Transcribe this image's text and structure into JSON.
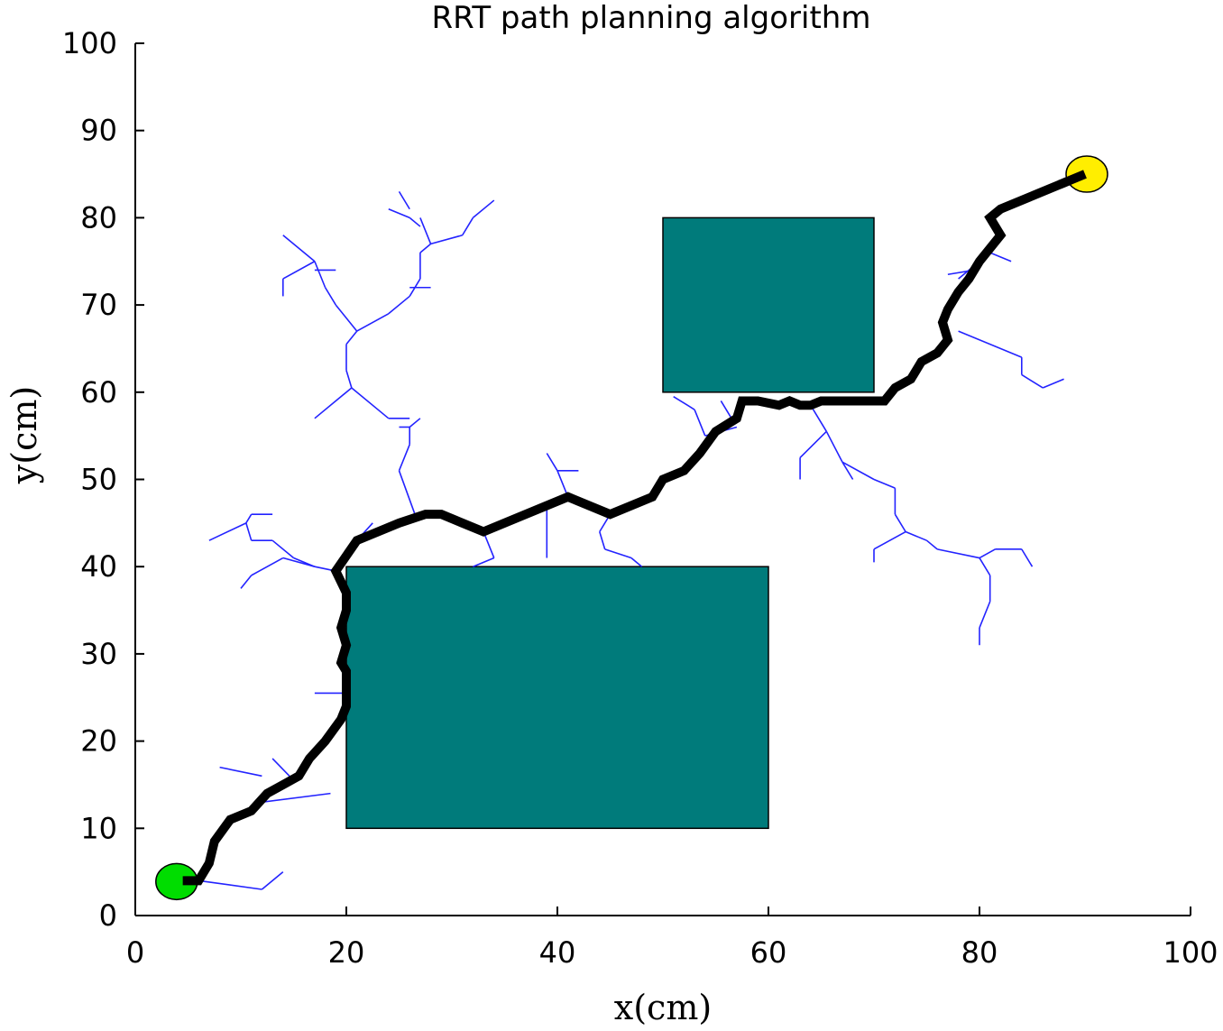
{
  "chart_data": {
    "type": "scatter",
    "title": "RRT path planning algorithm",
    "xlabel": "x(cm)",
    "ylabel": "y(cm)",
    "xlim": [
      0,
      100
    ],
    "ylim": [
      0,
      100
    ],
    "xticks": [
      "0",
      "20",
      "40",
      "60",
      "80",
      "100"
    ],
    "yticks": [
      "0",
      "10",
      "20",
      "30",
      "40",
      "50",
      "60",
      "70",
      "80",
      "90",
      "100"
    ],
    "grid": false,
    "legend": "none",
    "colors": {
      "obstacle": "#007b7b",
      "tree": "#2323ff",
      "path": "#000000",
      "start": "#00dd00",
      "goal": "#ffee00"
    },
    "start": [
      4,
      4
    ],
    "goal": [
      90,
      85
    ],
    "obstacles": [
      {
        "x": [
          20,
          60
        ],
        "y": [
          10,
          40
        ]
      },
      {
        "x": [
          50,
          70
        ],
        "y": [
          60,
          80
        ]
      }
    ],
    "path": [
      [
        4.5,
        4
      ],
      [
        6,
        4
      ],
      [
        7,
        6
      ],
      [
        7.5,
        8.5
      ],
      [
        9,
        11
      ],
      [
        11,
        12
      ],
      [
        12.5,
        14
      ],
      [
        14,
        15
      ],
      [
        15.5,
        16
      ],
      [
        16.5,
        18
      ],
      [
        18,
        20
      ],
      [
        19.5,
        22.5
      ],
      [
        20,
        24
      ],
      [
        20,
        28
      ],
      [
        19.5,
        29
      ],
      [
        20,
        31
      ],
      [
        19.5,
        33
      ],
      [
        20,
        35
      ],
      [
        20,
        37
      ],
      [
        19,
        39.5
      ],
      [
        21,
        43
      ],
      [
        25,
        45
      ],
      [
        27.5,
        46
      ],
      [
        29,
        46
      ],
      [
        33,
        44
      ],
      [
        37,
        46
      ],
      [
        41,
        48
      ],
      [
        45,
        46
      ],
      [
        49,
        48
      ],
      [
        50,
        50
      ],
      [
        52,
        51
      ],
      [
        53.5,
        53
      ],
      [
        55,
        55.5
      ],
      [
        57,
        57
      ],
      [
        57.5,
        59
      ],
      [
        59,
        59
      ],
      [
        61,
        58.5
      ],
      [
        62,
        59
      ],
      [
        63,
        58.5
      ],
      [
        64,
        58.5
      ],
      [
        65,
        59
      ],
      [
        71,
        59
      ],
      [
        72,
        60.5
      ],
      [
        73.5,
        61.5
      ],
      [
        74.5,
        63.5
      ],
      [
        76,
        64.5
      ],
      [
        77,
        66
      ],
      [
        76.5,
        68
      ],
      [
        77,
        69.5
      ],
      [
        78,
        71.5
      ],
      [
        79,
        73
      ],
      [
        80,
        75
      ],
      [
        81,
        76.5
      ],
      [
        82,
        78
      ],
      [
        81,
        80
      ],
      [
        82,
        81
      ],
      [
        90,
        85
      ]
    ],
    "tree_edges": [
      [
        [
          6,
          4
        ],
        [
          12,
          3
        ]
      ],
      [
        [
          12,
          3
        ],
        [
          14,
          5
        ]
      ],
      [
        [
          12,
          13
        ],
        [
          18.5,
          14
        ]
      ],
      [
        [
          12,
          16
        ],
        [
          8,
          17
        ]
      ],
      [
        [
          13,
          18
        ],
        [
          15,
          15.5
        ]
      ],
      [
        [
          17,
          25.5
        ],
        [
          20,
          25.5
        ]
      ],
      [
        [
          19,
          39.5
        ],
        [
          17,
          40
        ]
      ],
      [
        [
          17,
          40
        ],
        [
          14,
          41
        ]
      ],
      [
        [
          14,
          41
        ],
        [
          11,
          39
        ]
      ],
      [
        [
          11,
          39
        ],
        [
          10,
          37.5
        ]
      ],
      [
        [
          17,
          40
        ],
        [
          15,
          41
        ]
      ],
      [
        [
          15,
          41
        ],
        [
          13,
          43
        ]
      ],
      [
        [
          13,
          43
        ],
        [
          11,
          43
        ]
      ],
      [
        [
          11,
          43
        ],
        [
          10.5,
          45
        ]
      ],
      [
        [
          10.5,
          45
        ],
        [
          7,
          43
        ]
      ],
      [
        [
          10.5,
          45
        ],
        [
          11,
          46
        ]
      ],
      [
        [
          11,
          46
        ],
        [
          13,
          46
        ]
      ],
      [
        [
          21,
          43
        ],
        [
          22.5,
          45
        ]
      ],
      [
        [
          33,
          44
        ],
        [
          34,
          41
        ]
      ],
      [
        [
          34,
          41
        ],
        [
          32,
          40
        ]
      ],
      [
        [
          39,
          41
        ],
        [
          39,
          47
        ]
      ],
      [
        [
          41,
          48
        ],
        [
          40,
          51
        ]
      ],
      [
        [
          40,
          51
        ],
        [
          39,
          53
        ]
      ],
      [
        [
          40,
          51
        ],
        [
          42,
          51
        ]
      ],
      [
        [
          45,
          46
        ],
        [
          44,
          44
        ]
      ],
      [
        [
          44,
          44
        ],
        [
          44.5,
          42
        ]
      ],
      [
        [
          44.5,
          42
        ],
        [
          47,
          41
        ]
      ],
      [
        [
          47,
          41
        ],
        [
          48,
          40
        ]
      ],
      [
        [
          26.5,
          46
        ],
        [
          25,
          51
        ]
      ],
      [
        [
          25,
          51
        ],
        [
          26,
          54
        ]
      ],
      [
        [
          26,
          54
        ],
        [
          26,
          56
        ]
      ],
      [
        [
          26,
          56
        ],
        [
          27,
          57
        ]
      ],
      [
        [
          26,
          56
        ],
        [
          25,
          56
        ]
      ],
      [
        [
          26,
          57
        ],
        [
          24,
          57
        ]
      ],
      [
        [
          24,
          57
        ],
        [
          20.5,
          60.5
        ]
      ],
      [
        [
          20.5,
          60.5
        ],
        [
          17,
          57
        ]
      ],
      [
        [
          20.5,
          60.5
        ],
        [
          20,
          62.5
        ]
      ],
      [
        [
          20,
          62.5
        ],
        [
          20,
          65.5
        ]
      ],
      [
        [
          20,
          65.5
        ],
        [
          21,
          67
        ]
      ],
      [
        [
          21,
          67
        ],
        [
          19,
          70
        ]
      ],
      [
        [
          19,
          70
        ],
        [
          18,
          72
        ]
      ],
      [
        [
          18,
          72
        ],
        [
          17,
          75
        ]
      ],
      [
        [
          17,
          75
        ],
        [
          14,
          78
        ]
      ],
      [
        [
          17,
          75
        ],
        [
          14,
          73
        ]
      ],
      [
        [
          14,
          73
        ],
        [
          14,
          71
        ]
      ],
      [
        [
          17,
          74
        ],
        [
          19,
          74
        ]
      ],
      [
        [
          21,
          67
        ],
        [
          24,
          69
        ]
      ],
      [
        [
          24,
          69
        ],
        [
          26,
          71
        ]
      ],
      [
        [
          26,
          71
        ],
        [
          27,
          73
        ]
      ],
      [
        [
          26,
          72
        ],
        [
          28,
          72
        ]
      ],
      [
        [
          27,
          73
        ],
        [
          27,
          76
        ]
      ],
      [
        [
          27,
          76
        ],
        [
          28,
          77
        ]
      ],
      [
        [
          28,
          77
        ],
        [
          27,
          80
        ]
      ],
      [
        [
          28,
          77
        ],
        [
          31,
          78
        ]
      ],
      [
        [
          31,
          78
        ],
        [
          32,
          80
        ]
      ],
      [
        [
          32,
          80
        ],
        [
          34,
          82
        ]
      ],
      [
        [
          27,
          79
        ],
        [
          26,
          80
        ]
      ],
      [
        [
          26,
          80
        ],
        [
          24,
          81
        ]
      ],
      [
        [
          26,
          81
        ],
        [
          25,
          83
        ]
      ],
      [
        [
          57,
          56
        ],
        [
          54,
          55
        ]
      ],
      [
        [
          54,
          55
        ],
        [
          53,
          58
        ]
      ],
      [
        [
          53,
          58
        ],
        [
          51,
          59.5
        ]
      ],
      [
        [
          56.5,
          57
        ],
        [
          55.5,
          59
        ]
      ],
      [
        [
          64,
          58.5
        ],
        [
          65.5,
          55.5
        ]
      ],
      [
        [
          65.5,
          55.5
        ],
        [
          63,
          52.5
        ]
      ],
      [
        [
          63,
          52.5
        ],
        [
          63,
          50
        ]
      ],
      [
        [
          65.5,
          55.5
        ],
        [
          67,
          52
        ]
      ],
      [
        [
          67,
          52
        ],
        [
          68,
          50
        ]
      ],
      [
        [
          67,
          52
        ],
        [
          70,
          50
        ]
      ],
      [
        [
          70,
          50
        ],
        [
          72,
          49
        ]
      ],
      [
        [
          72,
          49
        ],
        [
          72,
          46
        ]
      ],
      [
        [
          72,
          46
        ],
        [
          73,
          44
        ]
      ],
      [
        [
          73,
          44
        ],
        [
          70,
          42
        ]
      ],
      [
        [
          70,
          42
        ],
        [
          70,
          40.5
        ]
      ],
      [
        [
          73,
          44
        ],
        [
          75,
          43
        ]
      ],
      [
        [
          75,
          43
        ],
        [
          76,
          42
        ]
      ],
      [
        [
          76,
          42
        ],
        [
          80,
          41
        ]
      ],
      [
        [
          80,
          41
        ],
        [
          81,
          39
        ]
      ],
      [
        [
          81,
          39
        ],
        [
          81,
          36
        ]
      ],
      [
        [
          81,
          36
        ],
        [
          80,
          33
        ]
      ],
      [
        [
          80,
          33
        ],
        [
          80,
          31
        ]
      ],
      [
        [
          80,
          41
        ],
        [
          81.5,
          42
        ]
      ],
      [
        [
          81.5,
          42
        ],
        [
          84,
          42
        ]
      ],
      [
        [
          84,
          42
        ],
        [
          85,
          40
        ]
      ],
      [
        [
          78,
          67
        ],
        [
          84,
          64
        ]
      ],
      [
        [
          84,
          64
        ],
        [
          84,
          62
        ]
      ],
      [
        [
          84,
          62
        ],
        [
          86,
          60.5
        ]
      ],
      [
        [
          86,
          60.5
        ],
        [
          88,
          61.5
        ]
      ],
      [
        [
          78,
          73
        ],
        [
          81,
          76
        ]
      ],
      [
        [
          81,
          76
        ],
        [
          83,
          75
        ]
      ],
      [
        [
          79.5,
          74
        ],
        [
          77,
          73.5
        ]
      ]
    ]
  }
}
